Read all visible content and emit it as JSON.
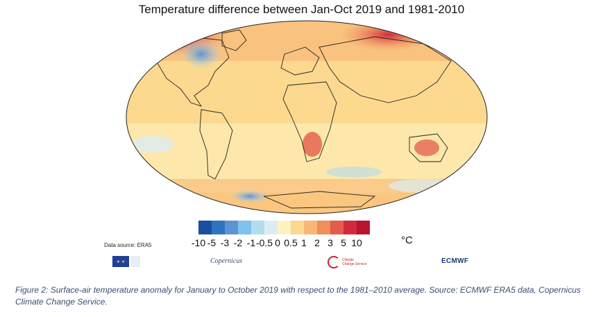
{
  "title": "Temperature difference between Jan-Oct 2019 and 1981-2010",
  "data_source": "Data source: ERA5",
  "legend": {
    "unit": "°C",
    "ticks": [
      "-10",
      "-5",
      "-3",
      "-2",
      "-1",
      "-0.5",
      "0",
      "0.5",
      "1",
      "2",
      "3",
      "5",
      "10"
    ],
    "colors": [
      "#1b4f9e",
      "#2f73c1",
      "#5b93d4",
      "#7fc3ea",
      "#b3dcef",
      "#dcedf2",
      "#fdf3c2",
      "#fcd98f",
      "#f8b977",
      "#f08e5c",
      "#e25e4c",
      "#d12a3a",
      "#b81530"
    ]
  },
  "logos": {
    "eu": "★ ★",
    "copernicus": "Copernicus",
    "cams_line1": "Climate",
    "cams_line2": "Change Service",
    "ecmwf": "ECMWF"
  },
  "caption": "Figure 2: Surface-air temperature anomaly for January to October 2019 with respect to the 1981–2010 average. Source: ECMWF ERA5 data, Copernicus Climate Change Service."
}
